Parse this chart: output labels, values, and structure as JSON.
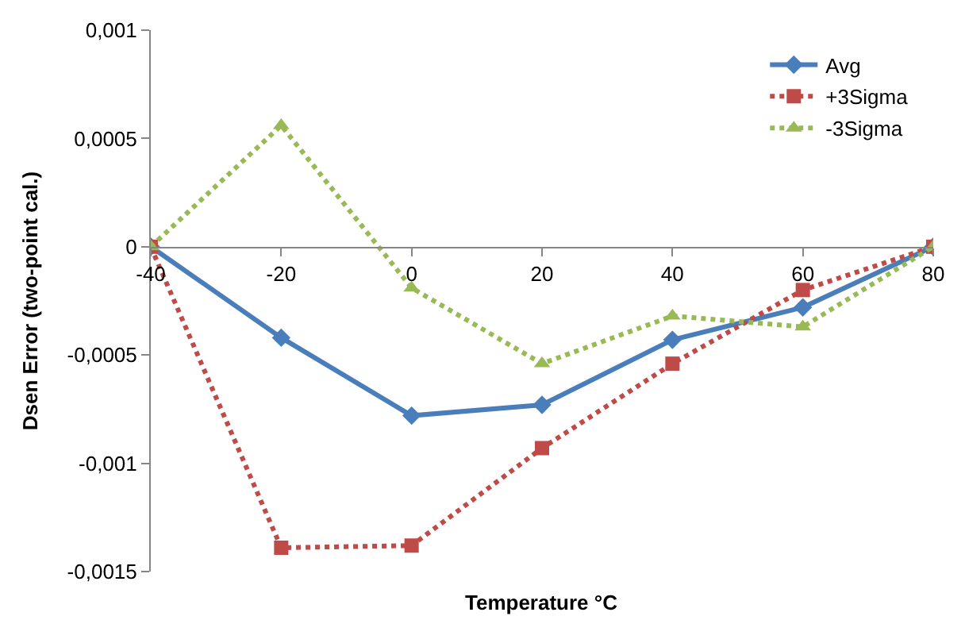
{
  "chart_data": {
    "type": "line",
    "xlabel": "Temperature °C",
    "ylabel": "Dsen Error (two-point cal.)",
    "x": [
      -40,
      -20,
      0,
      20,
      40,
      60,
      80
    ],
    "xlim": [
      -40,
      80
    ],
    "xticks": [
      -40,
      -20,
      0,
      20,
      40,
      60,
      80
    ],
    "ylim": [
      -0.0015,
      0.001
    ],
    "yticks": [
      {
        "value": -0.0015,
        "label": "-0,0015"
      },
      {
        "value": -0.001,
        "label": "-0,001"
      },
      {
        "value": -0.0005,
        "label": "-0,0005"
      },
      {
        "value": 0,
        "label": "0"
      },
      {
        "value": 0.0005,
        "label": "0,0005"
      },
      {
        "value": 0.001,
        "label": "0,001"
      }
    ],
    "grid": false,
    "legend": "top right",
    "series": [
      {
        "name": "Avg",
        "color": "#4a7ebb",
        "marker": "diamond",
        "line_style": "solid",
        "values": [
          0,
          -0.00042,
          -0.00078,
          -0.00073,
          -0.00043,
          -0.00028,
          0
        ]
      },
      {
        "name": "+3Sigma",
        "color": "#be4b48",
        "marker": "square",
        "line_style": "dotted",
        "values": [
          0,
          -0.00139,
          -0.00138,
          -0.00093,
          -0.00054,
          -0.0002,
          0
        ]
      },
      {
        "name": "-3Sigma",
        "color": "#98b954",
        "marker": "triangle",
        "line_style": "dotted",
        "values": [
          0,
          0.00056,
          -0.00019,
          -0.00054,
          -0.00032,
          -0.00037,
          0
        ]
      }
    ]
  }
}
